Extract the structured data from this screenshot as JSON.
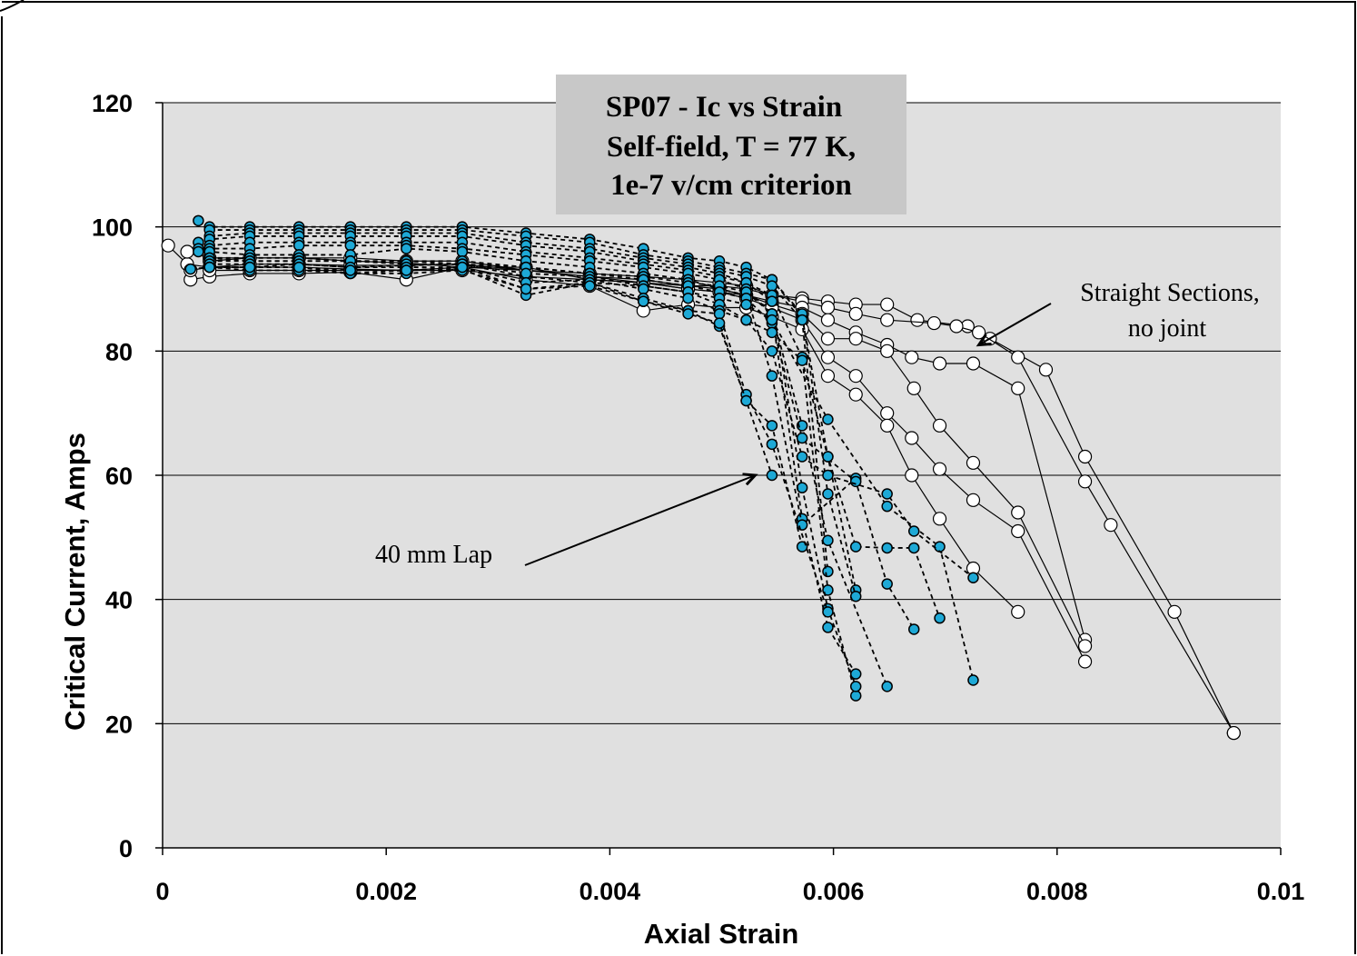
{
  "chart_data": {
    "type": "scatter",
    "title_lines": [
      "SP07 - Ic  vs Strain",
      "Self-field, T = 77 K,",
      "1e-7 v/cm criterion"
    ],
    "xlabel": "Axial Strain",
    "ylabel": "Critical Current, Amps",
    "xlim": [
      0,
      0.01
    ],
    "ylim": [
      0,
      120
    ],
    "x_ticks": [
      0,
      0.002,
      0.004,
      0.006,
      0.008,
      0.01
    ],
    "x_tick_labels": [
      "0",
      "0.002",
      "0.004",
      "0.006",
      "0.008",
      "0.01"
    ],
    "y_ticks": [
      0,
      20,
      40,
      60,
      80,
      100,
      120
    ],
    "y_tick_labels": [
      "0",
      "20",
      "40",
      "60",
      "80",
      "100",
      "120"
    ],
    "grid": "horizontal",
    "legend": "none",
    "colors": {
      "plot_background": "#e0e0e0",
      "joint_marker": "#1ea9d6",
      "straight_marker": "#ffffff",
      "line": "#000000"
    },
    "annotations": [
      {
        "text_lines": [
          "Straight Sections,",
          "no joint"
        ],
        "points_to": [
          0.0073,
          81
        ]
      },
      {
        "text_lines": [
          "40 mm Lap"
        ],
        "points_to": [
          0.0053,
          60
        ]
      }
    ],
    "series": [
      {
        "group": "straight",
        "x": [
          5e-05,
          0.00022,
          0.00042,
          0.00078,
          0.00122,
          0.00168,
          0.00218,
          0.00268,
          0.00325,
          0.00382,
          0.0043,
          0.0047,
          0.00498,
          0.00522,
          0.00545,
          0.00572,
          0.00595,
          0.0062,
          0.00648,
          0.00675,
          0.0072,
          0.0074,
          0.0079,
          0.00825,
          0.00905,
          0.00958
        ],
        "y": [
          97,
          94,
          93.5,
          93.5,
          93.5,
          93.2,
          93,
          93,
          92,
          91.5,
          91,
          90.5,
          90.5,
          90,
          89,
          88.5,
          88,
          87.5,
          87.5,
          85,
          84,
          82,
          77,
          63,
          38,
          18.5
        ]
      },
      {
        "group": "straight",
        "x": [
          0.00022,
          0.00042,
          0.00078,
          0.00122,
          0.00168,
          0.00218,
          0.00268,
          0.00325,
          0.00382,
          0.0043,
          0.0047,
          0.00498,
          0.00522,
          0.00545,
          0.00572,
          0.00595,
          0.0062,
          0.00648,
          0.0069,
          0.0071,
          0.0073,
          0.00765,
          0.00825,
          0.00848,
          0.00958
        ],
        "y": [
          96,
          95,
          95,
          95,
          94.5,
          94.2,
          93.5,
          93,
          92.5,
          92,
          91.5,
          91,
          90.5,
          89,
          88,
          87,
          86,
          85,
          84.5,
          84,
          83,
          79,
          59,
          52,
          18.5
        ]
      },
      {
        "group": "straight",
        "x": [
          0.00025,
          0.00042,
          0.00078,
          0.00122,
          0.00168,
          0.00218,
          0.00268,
          0.00325,
          0.00382,
          0.0043,
          0.0047,
          0.00498,
          0.00522,
          0.00545,
          0.00572,
          0.00595,
          0.0062,
          0.00648,
          0.0067,
          0.00695,
          0.00725,
          0.00765,
          0.00825
        ],
        "y": [
          91.5,
          92,
          92.5,
          92.5,
          92.7,
          91.5,
          93.5,
          93.5,
          91.5,
          91,
          90,
          89.5,
          89,
          88,
          87,
          85,
          83,
          81,
          79,
          78,
          78,
          74,
          33.5
        ]
      },
      {
        "group": "straight",
        "x": [
          0.00025,
          0.00042,
          0.00078,
          0.00122,
          0.00168,
          0.00218,
          0.00268,
          0.00325,
          0.00382,
          0.0043,
          0.0047,
          0.00498,
          0.00522,
          0.00545,
          0.00572,
          0.00595,
          0.0062,
          0.00648,
          0.00672,
          0.00695,
          0.00725,
          0.00765,
          0.00825
        ],
        "y": [
          93,
          93.5,
          94,
          94,
          93.8,
          93.8,
          94,
          93,
          92,
          91.5,
          90.5,
          90,
          89,
          87.5,
          86,
          82,
          82,
          80,
          74,
          68,
          62,
          54,
          32.5
        ]
      },
      {
        "group": "straight",
        "x": [
          0.00042,
          0.00078,
          0.00122,
          0.00168,
          0.00218,
          0.00268,
          0.00325,
          0.00382,
          0.0043,
          0.0047,
          0.00498,
          0.00522,
          0.00545,
          0.00572,
          0.00595,
          0.0062,
          0.00648,
          0.0067,
          0.00695,
          0.00725,
          0.00765,
          0.00825
        ],
        "y": [
          94.5,
          95,
          95,
          95,
          94.5,
          94.5,
          93,
          92,
          91,
          90,
          89.5,
          88.5,
          87,
          85,
          79,
          76,
          70,
          66,
          61,
          56,
          51,
          30
        ]
      },
      {
        "group": "straight",
        "x": [
          0.00042,
          0.00078,
          0.00122,
          0.00168,
          0.00218,
          0.00268,
          0.00325,
          0.00382,
          0.0043,
          0.0047,
          0.00498,
          0.00522,
          0.00545,
          0.00572,
          0.00595,
          0.0062,
          0.00648,
          0.0067,
          0.00695,
          0.00725,
          0.00765
        ],
        "y": [
          93,
          93,
          93,
          93,
          93,
          93.5,
          91.5,
          90.5,
          86.5,
          87.5,
          87,
          87,
          85.5,
          83.5,
          76,
          73,
          68,
          60,
          53,
          45,
          38
        ]
      },
      {
        "group": "joint",
        "x": [
          0.00032,
          0.00042,
          0.00078,
          0.00122,
          0.00168,
          0.00218,
          0.00268,
          0.00325,
          0.00382,
          0.0043,
          0.0047,
          0.00498,
          0.00522,
          0.00545,
          0.00572,
          0.00595,
          0.0062
        ],
        "y": [
          101,
          100,
          100,
          100,
          100,
          100,
          100,
          99,
          98,
          96.5,
          95,
          94.5,
          93.5,
          91.5,
          85.5,
          63,
          41.5
        ]
      },
      {
        "group": "joint",
        "x": [
          0.00042,
          0.00078,
          0.00122,
          0.00168,
          0.00218,
          0.00268,
          0.00325,
          0.00382,
          0.0043,
          0.0047,
          0.00498,
          0.00522,
          0.00545,
          0.00572,
          0.00595,
          0.0062
        ],
        "y": [
          99.5,
          99.5,
          99.5,
          99.5,
          99.5,
          99.5,
          98.5,
          97.5,
          95.5,
          94.5,
          93.5,
          92.5,
          91.5,
          86,
          57,
          40.5
        ]
      },
      {
        "group": "joint",
        "x": [
          0.00042,
          0.00078,
          0.00122,
          0.00168,
          0.00218,
          0.00268,
          0.00325,
          0.00382,
          0.0043,
          0.0047,
          0.00498,
          0.00522,
          0.00545,
          0.00572,
          0.00595
        ],
        "y": [
          98.5,
          99,
          99,
          99,
          99,
          99,
          97.5,
          96.5,
          95,
          94,
          93,
          92,
          90.5,
          85,
          44.5
        ]
      },
      {
        "group": "joint",
        "x": [
          0.00032,
          0.00042,
          0.00078,
          0.00122,
          0.00168,
          0.00218,
          0.00268,
          0.00325,
          0.00382,
          0.0043,
          0.0047,
          0.00498,
          0.00522,
          0.00545,
          0.00572,
          0.00595,
          0.0062
        ],
        "y": [
          97.5,
          98,
          98.5,
          98.5,
          98.5,
          98.5,
          98.5,
          97,
          96,
          94.5,
          93.5,
          92.5,
          91,
          89,
          79,
          41.5,
          24.5
        ]
      },
      {
        "group": "joint",
        "x": [
          0.00042,
          0.00078,
          0.00122,
          0.00168,
          0.00218,
          0.00268,
          0.00325,
          0.00382,
          0.0043,
          0.0047,
          0.00498,
          0.00522,
          0.00545,
          0.00572,
          0.00595,
          0.0062
        ],
        "y": [
          97,
          97.5,
          97.5,
          97.5,
          97.5,
          97.5,
          96,
          95,
          94,
          93,
          92,
          91,
          88,
          58,
          38.5,
          26
        ]
      },
      {
        "group": "joint",
        "x": [
          0.00032,
          0.00042,
          0.00078,
          0.00122,
          0.00168,
          0.00218,
          0.00268,
          0.00325,
          0.00382,
          0.0043,
          0.0047,
          0.00498,
          0.00522,
          0.00545,
          0.00572,
          0.00595,
          0.0062
        ],
        "y": [
          96.5,
          96.5,
          96.5,
          97,
          97,
          97,
          96.5,
          95.5,
          94.5,
          93.5,
          92.5,
          91.5,
          90,
          86,
          53,
          35.5,
          28
        ]
      },
      {
        "group": "joint",
        "x": [
          0.00032,
          0.00042,
          0.00078,
          0.00122,
          0.00168,
          0.00218,
          0.00268,
          0.00325,
          0.00382,
          0.0043,
          0.0047,
          0.00498,
          0.00522,
          0.00545,
          0.00572,
          0.0062
        ],
        "y": [
          96,
          96,
          95.5,
          95.5,
          95.5,
          96.5,
          96,
          94.5,
          93.5,
          92.5,
          91.5,
          90,
          89,
          76,
          52,
          59.5
        ]
      },
      {
        "group": "joint",
        "x": [
          0.00042,
          0.00078,
          0.00122,
          0.00168,
          0.00218,
          0.00268,
          0.00325,
          0.00382,
          0.0043,
          0.0047,
          0.00498,
          0.00522,
          0.00545,
          0.00572,
          0.00595,
          0.00648
        ],
        "y": [
          95,
          95,
          95,
          94.5,
          94.5,
          94.5,
          93.5,
          92.5,
          92,
          91,
          90.5,
          89.5,
          86,
          68,
          49.5,
          26
        ]
      },
      {
        "group": "joint",
        "x": [
          0.00042,
          0.00078,
          0.00122,
          0.00168,
          0.00218,
          0.00268,
          0.00325,
          0.00382,
          0.0043,
          0.0047,
          0.00498,
          0.00522,
          0.00545,
          0.00572,
          0.0062,
          0.00648,
          0.00672
        ],
        "y": [
          95,
          94.5,
          94.5,
          94.5,
          94.5,
          94,
          93.5,
          92.5,
          91.5,
          90.5,
          89.5,
          88.5,
          84.5,
          66,
          59,
          42.5,
          35.2
        ]
      },
      {
        "group": "joint",
        "x": [
          0.00025,
          0.00042,
          0.00078,
          0.00122,
          0.00168,
          0.00218,
          0.00268,
          0.00325,
          0.00382,
          0.0043,
          0.0047,
          0.00498,
          0.00522,
          0.00545,
          0.00595,
          0.00648,
          0.00695,
          0.00725
        ],
        "y": [
          93.2,
          93.5,
          93.5,
          94,
          93.5,
          93.8,
          94,
          92,
          91,
          90.5,
          89.5,
          88.5,
          87.5,
          85,
          69,
          55,
          48.5,
          27
        ]
      },
      {
        "group": "joint",
        "x": [
          0.00042,
          0.00078,
          0.00122,
          0.00168,
          0.00218,
          0.00268,
          0.00325,
          0.00382,
          0.0043,
          0.0047,
          0.00498,
          0.00522,
          0.00545,
          0.00572,
          0.00595,
          0.00648,
          0.00672,
          0.00725
        ],
        "y": [
          94.5,
          94.5,
          94.5,
          94.5,
          94,
          94,
          92.5,
          92,
          90.5,
          89.5,
          87.5,
          85,
          80,
          63,
          60,
          57,
          51,
          43.5
        ]
      },
      {
        "group": "joint",
        "x": [
          0.00042,
          0.00078,
          0.00122,
          0.00168,
          0.00218,
          0.00268,
          0.00325,
          0.00382,
          0.0043,
          0.0047,
          0.00498,
          0.00522,
          0.00545,
          0.00572,
          0.00595,
          0.0062,
          0.00648,
          0.00672,
          0.00695
        ],
        "y": [
          94,
          94,
          94,
          93.5,
          93.5,
          93.5,
          91,
          91.5,
          90,
          88.5,
          86.5,
          85,
          83,
          78.5,
          63,
          48.5,
          48.3,
          48.3,
          37
        ]
      },
      {
        "group": "joint",
        "x": [
          0.00042,
          0.00078,
          0.00122,
          0.00168,
          0.00218,
          0.00268,
          0.00325,
          0.00382,
          0.0043,
          0.0047,
          0.00498,
          0.00522,
          0.00545,
          0.00572
        ],
        "y": [
          93.5,
          93.5,
          93.5,
          92.5,
          93,
          93.2,
          89,
          91,
          88,
          86.5,
          84,
          72,
          68,
          48.5
        ]
      },
      {
        "group": "joint",
        "x": [
          0.00042,
          0.00078,
          0.00122,
          0.00168,
          0.00218,
          0.00268,
          0.00325,
          0.00382,
          0.0043,
          0.0047,
          0.00498,
          0.00522,
          0.00545,
          0.00595
        ],
        "y": [
          93.5,
          93,
          93,
          92.5,
          92.5,
          93,
          90,
          91,
          88.5,
          86.5,
          86,
          73,
          65,
          38
        ]
      },
      {
        "group": "joint",
        "x": [
          0.00042,
          0.00078,
          0.00122,
          0.00168,
          0.00218,
          0.00268,
          0.00325,
          0.00382,
          0.0043,
          0.0047,
          0.00498,
          0.00522,
          0.00545
        ],
        "y": [
          93.5,
          93.5,
          93.5,
          93,
          93,
          93.5,
          90,
          90.5,
          88,
          86,
          84.5,
          72,
          60
        ]
      }
    ]
  }
}
